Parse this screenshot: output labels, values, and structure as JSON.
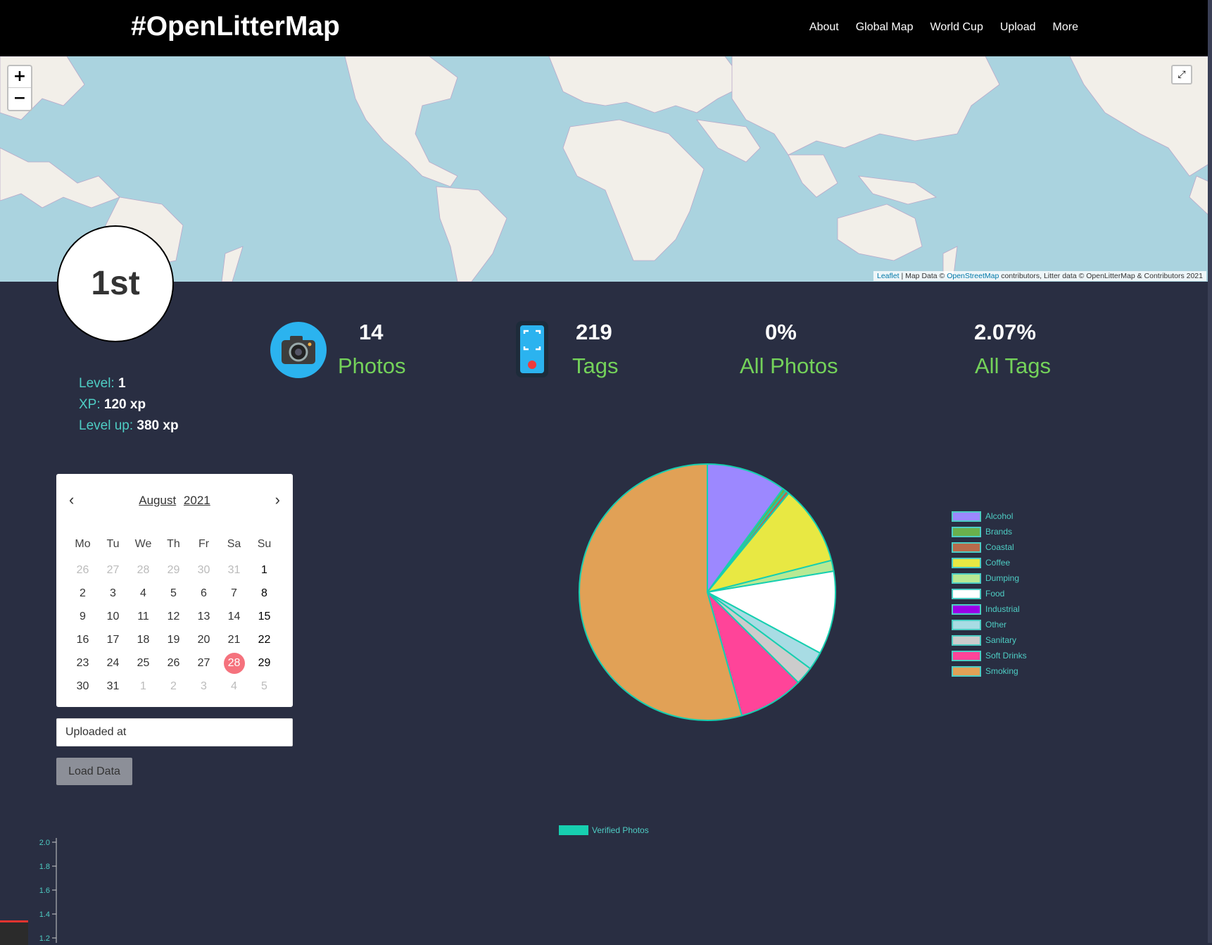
{
  "brand": "#OpenLitterMap",
  "nav": [
    "About",
    "Global Map",
    "World Cup",
    "Upload",
    "More"
  ],
  "map": {
    "zoom_in": "+",
    "zoom_out": "−",
    "fullscreen": "⤢",
    "attribution": {
      "leaflet": "Leaflet",
      "sep": "| Map Data ©",
      "osm": "OpenStreetMap",
      "rest": "contributors, Litter data © OpenLitterMap & Contributors 2021"
    }
  },
  "rank": "1st",
  "level": {
    "level_label": "Level:",
    "level_value": "1",
    "xp_label": "XP:",
    "xp_value": "120 xp",
    "levelup_label": "Level up:",
    "levelup_value": "380 xp"
  },
  "stats": {
    "photos_num": "14",
    "photos_label": "Photos",
    "tags_num": "219",
    "tags_label": "Tags",
    "allphotos_num": "0%",
    "allphotos_label": "All Photos",
    "alltags_num": "2.07%",
    "alltags_label": "All Tags"
  },
  "calendar": {
    "month": "August",
    "year": "2021",
    "dow": [
      "Mo",
      "Tu",
      "We",
      "Th",
      "Fr",
      "Sa",
      "Su"
    ],
    "days": [
      [
        "26",
        "27",
        "28",
        "29",
        "30",
        "31",
        "1"
      ],
      [
        "2",
        "3",
        "4",
        "5",
        "6",
        "7",
        "8"
      ],
      [
        "9",
        "10",
        "11",
        "12",
        "13",
        "14",
        "15"
      ],
      [
        "16",
        "17",
        "18",
        "19",
        "20",
        "21",
        "22"
      ],
      [
        "23",
        "24",
        "25",
        "26",
        "27",
        "28",
        "29"
      ],
      [
        "30",
        "31",
        "1",
        "2",
        "3",
        "4",
        "5"
      ]
    ],
    "selected": "28"
  },
  "filter": {
    "uploaded_at": "Uploaded at",
    "load_button": "Load Data"
  },
  "chart_data": [
    {
      "type": "pie",
      "categories": [
        "Alcohol",
        "Brands",
        "Coastal",
        "Coffee",
        "Dumping",
        "Food",
        "Industrial",
        "Other",
        "Sanitary",
        "Soft Drinks",
        "Smoking"
      ],
      "values": [
        22,
        1,
        1,
        22,
        3,
        23,
        0,
        5,
        5,
        18,
        119
      ],
      "colors": [
        "#9c88ff",
        "#6ab04c",
        "#b86b4b",
        "#e8e843",
        "#b8e994",
        "#ffffff",
        "#9b00e8",
        "#a8dce4",
        "#cccccc",
        "#ff4499",
        "#e1a156"
      ],
      "legend": "right"
    },
    {
      "type": "line",
      "series": [
        {
          "name": "Verified Photos",
          "values": []
        }
      ],
      "yticks": [
        "2.0",
        "1.8",
        "1.6",
        "1.4",
        "1.2"
      ],
      "legend": "top"
    }
  ]
}
